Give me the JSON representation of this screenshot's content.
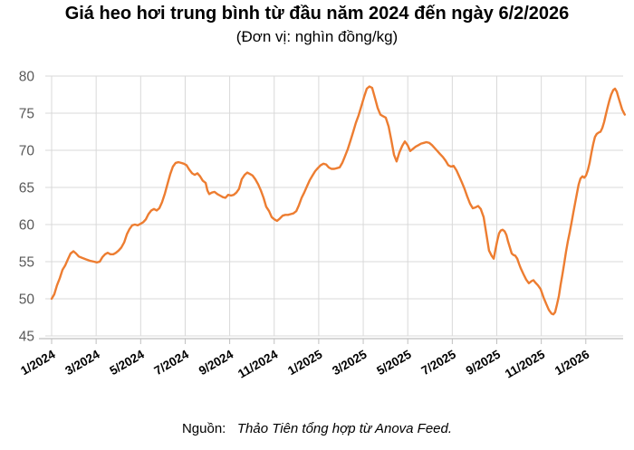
{
  "header": {
    "title": "Giá heo hơi trung bình từ đầu năm 2024 đến ngày 6/2/2026",
    "subtitle": "(Đơn vị: nghìn đồng/kg)"
  },
  "footer": {
    "source_label": "Nguồn:",
    "source_text": "Thảo Tiên tổng hợp từ Anova Feed."
  },
  "chart_data": {
    "type": "line",
    "title": "Giá heo hơi trung bình từ đầu năm 2024 đến ngày 6/2/2026",
    "subtitle": "(Đơn vị: nghìn đồng/kg)",
    "unit": "nghìn đồng/kg",
    "date_range": [
      "1/2024",
      "6/2/2026"
    ],
    "legend": "none",
    "grid": "on",
    "y_axis": {
      "min": 45,
      "max": 80,
      "step": 5,
      "ticks": [
        45,
        50,
        55,
        60,
        65,
        70,
        75,
        80
      ]
    },
    "x_axis": {
      "tick_labels": [
        "1/2024",
        "3/2024",
        "5/2024",
        "7/2024",
        "9/2024",
        "11/2024",
        "1/2025",
        "3/2025",
        "5/2025",
        "7/2025",
        "9/2025",
        "11/2025",
        "1/2026"
      ],
      "tick_month_index": [
        0,
        2,
        4,
        6,
        8,
        10,
        12,
        14,
        16,
        18,
        20,
        22,
        24
      ],
      "x_range_months": [
        0,
        25.75
      ]
    },
    "style": {
      "line_color": "#ED7D31",
      "line_width": 2.4,
      "gridline_color": "#D9D9D9",
      "axis_color": "#BFBFBF",
      "y_label_color": "#595959",
      "x_label_color": "#000000"
    },
    "series": [
      {
        "name": "Giá heo hơi trung bình (nghìn đồng/kg)",
        "color": "#ED7D31",
        "points": [
          [
            0.0,
            50.0
          ],
          [
            0.12,
            50.6
          ],
          [
            0.24,
            51.8
          ],
          [
            0.37,
            52.8
          ],
          [
            0.49,
            53.9
          ],
          [
            0.61,
            54.5
          ],
          [
            0.73,
            55.3
          ],
          [
            0.85,
            56.1
          ],
          [
            0.98,
            56.4
          ],
          [
            1.1,
            56.1
          ],
          [
            1.22,
            55.7
          ],
          [
            1.38,
            55.5
          ],
          [
            1.55,
            55.3
          ],
          [
            1.75,
            55.1
          ],
          [
            1.91,
            55.0
          ],
          [
            2.03,
            54.9
          ],
          [
            2.16,
            55.0
          ],
          [
            2.28,
            55.6
          ],
          [
            2.4,
            56.0
          ],
          [
            2.52,
            56.2
          ],
          [
            2.64,
            56.0
          ],
          [
            2.77,
            56.0
          ],
          [
            2.89,
            56.2
          ],
          [
            3.01,
            56.5
          ],
          [
            3.13,
            56.9
          ],
          [
            3.26,
            57.6
          ],
          [
            3.38,
            58.7
          ],
          [
            3.5,
            59.4
          ],
          [
            3.62,
            59.9
          ],
          [
            3.74,
            60.0
          ],
          [
            3.87,
            59.9
          ],
          [
            3.99,
            60.1
          ],
          [
            4.11,
            60.3
          ],
          [
            4.23,
            60.7
          ],
          [
            4.35,
            61.4
          ],
          [
            4.48,
            61.9
          ],
          [
            4.6,
            62.1
          ],
          [
            4.72,
            61.9
          ],
          [
            4.84,
            62.2
          ],
          [
            4.96,
            63.0
          ],
          [
            5.09,
            64.2
          ],
          [
            5.21,
            65.5
          ],
          [
            5.33,
            66.8
          ],
          [
            5.45,
            67.8
          ],
          [
            5.57,
            68.3
          ],
          [
            5.7,
            68.4
          ],
          [
            5.82,
            68.3
          ],
          [
            5.94,
            68.2
          ],
          [
            6.06,
            68.0
          ],
          [
            6.18,
            67.4
          ],
          [
            6.31,
            66.9
          ],
          [
            6.43,
            66.7
          ],
          [
            6.55,
            66.9
          ],
          [
            6.67,
            66.5
          ],
          [
            6.79,
            65.9
          ],
          [
            6.92,
            65.6
          ],
          [
            7.0,
            64.6
          ],
          [
            7.08,
            64.1
          ],
          [
            7.2,
            64.3
          ],
          [
            7.32,
            64.4
          ],
          [
            7.45,
            64.1
          ],
          [
            7.57,
            63.9
          ],
          [
            7.69,
            63.7
          ],
          [
            7.81,
            63.6
          ],
          [
            7.93,
            64.0
          ],
          [
            8.06,
            63.9
          ],
          [
            8.18,
            64.0
          ],
          [
            8.3,
            64.3
          ],
          [
            8.42,
            64.8
          ],
          [
            8.54,
            66.1
          ],
          [
            8.67,
            66.7
          ],
          [
            8.79,
            67.0
          ],
          [
            8.91,
            66.8
          ],
          [
            9.03,
            66.6
          ],
          [
            9.15,
            66.1
          ],
          [
            9.28,
            65.4
          ],
          [
            9.4,
            64.6
          ],
          [
            9.52,
            63.6
          ],
          [
            9.64,
            62.4
          ],
          [
            9.77,
            61.8
          ],
          [
            9.89,
            61.0
          ],
          [
            10.01,
            60.7
          ],
          [
            10.13,
            60.5
          ],
          [
            10.25,
            60.8
          ],
          [
            10.38,
            61.2
          ],
          [
            10.5,
            61.3
          ],
          [
            10.62,
            61.3
          ],
          [
            10.74,
            61.4
          ],
          [
            10.86,
            61.5
          ],
          [
            10.99,
            61.8
          ],
          [
            11.11,
            62.6
          ],
          [
            11.23,
            63.6
          ],
          [
            11.35,
            64.3
          ],
          [
            11.48,
            65.2
          ],
          [
            11.6,
            66.0
          ],
          [
            11.72,
            66.6
          ],
          [
            11.84,
            67.2
          ],
          [
            11.96,
            67.6
          ],
          [
            12.09,
            68.0
          ],
          [
            12.21,
            68.2
          ],
          [
            12.33,
            68.1
          ],
          [
            12.45,
            67.7
          ],
          [
            12.57,
            67.5
          ],
          [
            12.7,
            67.5
          ],
          [
            12.82,
            67.6
          ],
          [
            12.94,
            67.7
          ],
          [
            13.06,
            68.3
          ],
          [
            13.18,
            69.2
          ],
          [
            13.31,
            70.2
          ],
          [
            13.43,
            71.3
          ],
          [
            13.55,
            72.5
          ],
          [
            13.67,
            73.7
          ],
          [
            13.79,
            74.7
          ],
          [
            13.92,
            76.0
          ],
          [
            14.04,
            77.2
          ],
          [
            14.16,
            78.3
          ],
          [
            14.28,
            78.6
          ],
          [
            14.4,
            78.4
          ],
          [
            14.53,
            77.0
          ],
          [
            14.65,
            75.7
          ],
          [
            14.77,
            74.8
          ],
          [
            14.89,
            74.6
          ],
          [
            15.01,
            74.4
          ],
          [
            15.14,
            73.2
          ],
          [
            15.26,
            71.4
          ],
          [
            15.38,
            69.4
          ],
          [
            15.5,
            68.5
          ],
          [
            15.62,
            69.7
          ],
          [
            15.75,
            70.6
          ],
          [
            15.87,
            71.2
          ],
          [
            15.99,
            70.7
          ],
          [
            16.11,
            69.9
          ],
          [
            16.23,
            70.2
          ],
          [
            16.36,
            70.5
          ],
          [
            16.48,
            70.7
          ],
          [
            16.6,
            70.9
          ],
          [
            16.72,
            71.0
          ],
          [
            16.84,
            71.1
          ],
          [
            16.97,
            71.0
          ],
          [
            17.09,
            70.7
          ],
          [
            17.21,
            70.3
          ],
          [
            17.33,
            69.9
          ],
          [
            17.45,
            69.5
          ],
          [
            17.58,
            69.1
          ],
          [
            17.7,
            68.6
          ],
          [
            17.82,
            68.0
          ],
          [
            17.94,
            67.8
          ],
          [
            18.06,
            67.9
          ],
          [
            18.19,
            67.3
          ],
          [
            18.31,
            66.5
          ],
          [
            18.43,
            65.7
          ],
          [
            18.55,
            64.8
          ],
          [
            18.67,
            63.8
          ],
          [
            18.8,
            62.8
          ],
          [
            18.92,
            62.2
          ],
          [
            19.04,
            62.3
          ],
          [
            19.16,
            62.5
          ],
          [
            19.28,
            62.1
          ],
          [
            19.41,
            61.0
          ],
          [
            19.53,
            58.8
          ],
          [
            19.65,
            56.5
          ],
          [
            19.77,
            55.8
          ],
          [
            19.86,
            55.4
          ],
          [
            19.94,
            56.6
          ],
          [
            20.02,
            57.8
          ],
          [
            20.1,
            58.8
          ],
          [
            20.18,
            59.2
          ],
          [
            20.26,
            59.3
          ],
          [
            20.35,
            59.1
          ],
          [
            20.43,
            58.6
          ],
          [
            20.51,
            57.7
          ],
          [
            20.59,
            56.9
          ],
          [
            20.67,
            56.1
          ],
          [
            20.75,
            55.9
          ],
          [
            20.83,
            55.8
          ],
          [
            20.92,
            55.4
          ],
          [
            21.0,
            54.7
          ],
          [
            21.08,
            54.1
          ],
          [
            21.2,
            53.3
          ],
          [
            21.32,
            52.6
          ],
          [
            21.44,
            52.1
          ],
          [
            21.57,
            52.4
          ],
          [
            21.65,
            52.5
          ],
          [
            21.73,
            52.2
          ],
          [
            21.85,
            51.8
          ],
          [
            21.97,
            51.3
          ],
          [
            22.1,
            50.2
          ],
          [
            22.22,
            49.3
          ],
          [
            22.34,
            48.5
          ],
          [
            22.46,
            48.0
          ],
          [
            22.54,
            47.9
          ],
          [
            22.62,
            48.2
          ],
          [
            22.7,
            49.2
          ],
          [
            22.79,
            50.4
          ],
          [
            22.87,
            51.9
          ],
          [
            22.95,
            53.3
          ],
          [
            23.03,
            54.8
          ],
          [
            23.11,
            56.3
          ],
          [
            23.19,
            57.7
          ],
          [
            23.28,
            59.0
          ],
          [
            23.36,
            60.3
          ],
          [
            23.44,
            61.6
          ],
          [
            23.52,
            62.9
          ],
          [
            23.6,
            64.2
          ],
          [
            23.68,
            65.4
          ],
          [
            23.76,
            66.2
          ],
          [
            23.85,
            66.5
          ],
          [
            23.93,
            66.3
          ],
          [
            24.01,
            66.6
          ],
          [
            24.09,
            67.3
          ],
          [
            24.17,
            68.3
          ],
          [
            24.25,
            69.6
          ],
          [
            24.33,
            70.8
          ],
          [
            24.41,
            71.8
          ],
          [
            24.49,
            72.2
          ],
          [
            24.58,
            72.4
          ],
          [
            24.66,
            72.5
          ],
          [
            24.74,
            73.0
          ],
          [
            24.82,
            73.8
          ],
          [
            24.9,
            74.8
          ],
          [
            24.98,
            75.8
          ],
          [
            25.06,
            76.7
          ],
          [
            25.14,
            77.5
          ],
          [
            25.23,
            78.1
          ],
          [
            25.31,
            78.3
          ],
          [
            25.39,
            77.9
          ],
          [
            25.47,
            77.1
          ],
          [
            25.55,
            76.3
          ],
          [
            25.63,
            75.5
          ],
          [
            25.75,
            74.8
          ]
        ]
      }
    ]
  }
}
